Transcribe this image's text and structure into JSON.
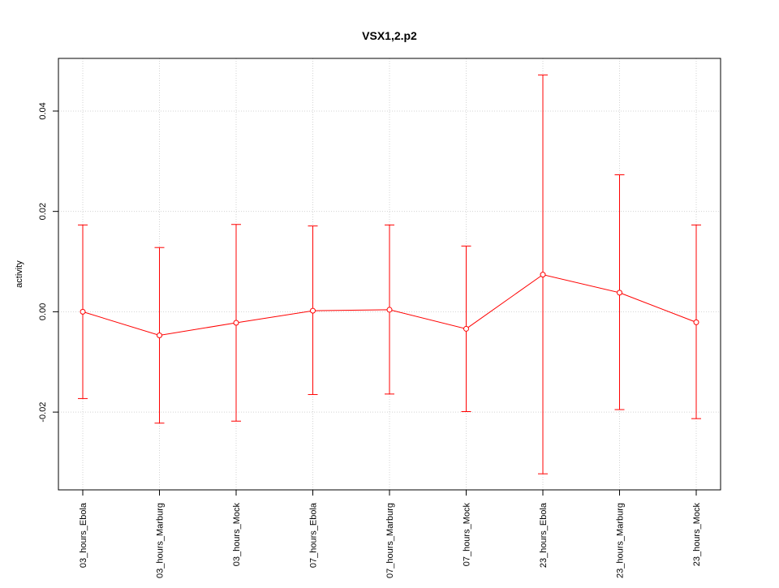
{
  "chart_data": {
    "type": "line",
    "title": "VSX1,2.p2",
    "xlabel": "",
    "ylabel": "activity",
    "categories": [
      "03_hours_Ebola",
      "03_hours_Marburg",
      "03_hours_Mock",
      "07_hours_Ebola",
      "07_hours_Marburg",
      "07_hours_Mock",
      "23_hours_Ebola",
      "23_hours_Marburg",
      "23_hours_Mock"
    ],
    "series": [
      {
        "values": [
          0.0,
          -0.0047,
          -0.0022,
          0.0002,
          0.0004,
          -0.0034,
          0.0074,
          0.0038,
          -0.0021
        ],
        "upper": [
          0.0173,
          0.0128,
          0.0174,
          0.0171,
          0.0173,
          0.0131,
          0.0472,
          0.0273,
          0.0173
        ],
        "lower": [
          -0.0173,
          -0.0222,
          -0.0218,
          -0.0165,
          -0.0164,
          -0.0199,
          -0.0323,
          -0.0195,
          -0.0213
        ],
        "color": "#ff0000"
      }
    ],
    "ylim": [
      -0.0355,
      0.0505
    ],
    "yticks": [
      -0.02,
      0.0,
      0.02,
      0.04
    ],
    "ytick_labels": [
      "-0.02",
      "0.00",
      "0.02",
      "0.04"
    ],
    "grid": true,
    "grid_color": "#d3d3d3",
    "axis_color": "#000000",
    "legend": "none"
  }
}
